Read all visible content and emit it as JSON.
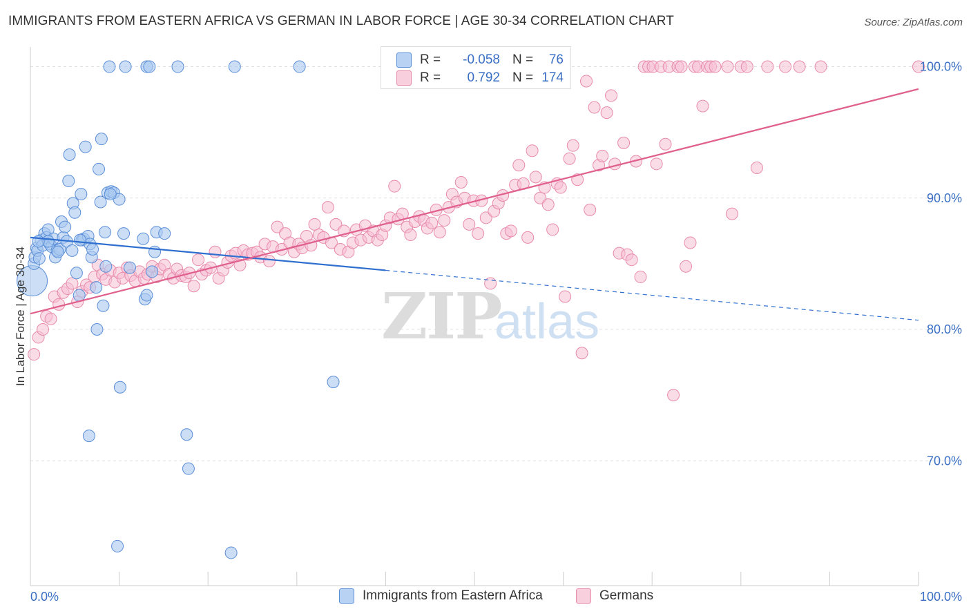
{
  "title": "IMMIGRANTS FROM EASTERN AFRICA VS GERMAN IN LABOR FORCE | AGE 30-34 CORRELATION CHART",
  "source": "Source: ZipAtlas.com",
  "watermark": {
    "zip": "ZIP",
    "atlas": "atlas"
  },
  "colors": {
    "blue_fill": "#a9c8f0",
    "blue_stroke": "#5b8ed8",
    "blue_line": "#2f6fcf",
    "pink_fill": "#f5c0d3",
    "pink_stroke": "#e88aaa",
    "pink_line": "#e0608e",
    "tick_label": "#3a6fc4",
    "grid": "#e0e0e0"
  },
  "stats": [
    {
      "series": "Immigrants from Eastern Africa",
      "r_label": "R =",
      "r": "-0.058",
      "n_label": "N =",
      "n": "76"
    },
    {
      "series": "Germans",
      "r_label": "R =",
      "r": "0.792",
      "n_label": "N =",
      "n": "174"
    }
  ],
  "chart_data": {
    "type": "scatter",
    "title": "IMMIGRANTS FROM EASTERN AFRICA VS GERMAN IN LABOR FORCE | AGE 30-34 CORRELATION CHART",
    "xlabel": "",
    "ylabel": "In Labor Force | Age 30-34",
    "xlim": [
      0,
      100
    ],
    "ylim": [
      60.5,
      101.5
    ],
    "x_tick_labels": [
      "0.0%",
      "100.0%"
    ],
    "y_ticks": [
      70,
      80,
      90,
      100
    ],
    "y_tick_labels": [
      "70.0%",
      "80.0%",
      "90.0%",
      "100.0%"
    ],
    "grid": true,
    "legend": "bottom-center",
    "series": [
      {
        "name": "Immigrants from Eastern Africa",
        "color": "#a9c8f0",
        "trend": {
          "x0": 0,
          "y0": 87.0,
          "x1": 40,
          "y1": 84.5,
          "dashed_to_x": 100,
          "dashed_to_y": 80.7
        },
        "points": [
          [
            0.2,
            83.7
          ],
          [
            0.4,
            85.0
          ],
          [
            0.5,
            85.5
          ],
          [
            0.7,
            86.2
          ],
          [
            0.8,
            86.0
          ],
          [
            1.2,
            86.8
          ],
          [
            1.4,
            86.4
          ],
          [
            1.6,
            87.3
          ],
          [
            1.8,
            87.0
          ],
          [
            2.0,
            87.6
          ],
          [
            2.2,
            86.5
          ],
          [
            2.4,
            86.3
          ],
          [
            2.6,
            86.9
          ],
          [
            2.8,
            85.5
          ],
          [
            3.0,
            86.0
          ],
          [
            3.3,
            86.1
          ],
          [
            3.5,
            88.2
          ],
          [
            3.7,
            87.0
          ],
          [
            3.9,
            87.8
          ],
          [
            4.1,
            86.7
          ],
          [
            4.3,
            91.3
          ],
          [
            4.4,
            93.3
          ],
          [
            4.7,
            86.0
          ],
          [
            4.8,
            89.6
          ],
          [
            5.0,
            88.9
          ],
          [
            5.2,
            84.3
          ],
          [
            5.5,
            82.6
          ],
          [
            5.7,
            90.3
          ],
          [
            5.8,
            86.8
          ],
          [
            6.0,
            86.9
          ],
          [
            6.2,
            93.9
          ],
          [
            6.5,
            87.1
          ],
          [
            6.7,
            86.5
          ],
          [
            6.9,
            85.5
          ],
          [
            7.0,
            86.1
          ],
          [
            7.4,
            83.2
          ],
          [
            7.5,
            80.0
          ],
          [
            7.7,
            92.2
          ],
          [
            7.9,
            89.7
          ],
          [
            8.0,
            94.5
          ],
          [
            8.2,
            81.8
          ],
          [
            8.4,
            87.4
          ],
          [
            8.5,
            84.8
          ],
          [
            8.7,
            90.4
          ],
          [
            8.9,
            100.0
          ],
          [
            9.1,
            90.5
          ],
          [
            9.4,
            90.4
          ],
          [
            9.8,
            63.5
          ],
          [
            10.0,
            89.9
          ],
          [
            10.1,
            75.6
          ],
          [
            10.5,
            87.3
          ],
          [
            10.7,
            100.0
          ],
          [
            11.2,
            84.7
          ],
          [
            12.9,
            82.3
          ],
          [
            13.1,
            82.6
          ],
          [
            13.1,
            100.0
          ],
          [
            13.4,
            100.0
          ],
          [
            13.7,
            84.4
          ],
          [
            14.0,
            85.9
          ],
          [
            14.2,
            87.4
          ],
          [
            15.1,
            87.3
          ],
          [
            16.6,
            100.0
          ],
          [
            17.6,
            72.0
          ],
          [
            17.8,
            69.4
          ],
          [
            22.6,
            63.0
          ],
          [
            23.0,
            100.0
          ],
          [
            30.3,
            100.0
          ],
          [
            34.1,
            76.0
          ],
          [
            1.0,
            85.4
          ],
          [
            2.0,
            86.7
          ],
          [
            3.1,
            85.9
          ],
          [
            5.6,
            86.8
          ],
          [
            6.6,
            71.9
          ],
          [
            9.0,
            90.3
          ],
          [
            12.7,
            86.9
          ],
          [
            0.9,
            86.7
          ]
        ],
        "point_sizes": {
          "0": "large"
        }
      },
      {
        "name": "Germans",
        "color": "#f5c0d3",
        "trend": {
          "x0": 0,
          "y0": 81.2,
          "x1": 100,
          "y1": 98.3
        },
        "points": [
          [
            0.4,
            78.1
          ],
          [
            0.9,
            79.4
          ],
          [
            1.4,
            80.0
          ],
          [
            1.8,
            81.0
          ],
          [
            2.3,
            80.8
          ],
          [
            2.7,
            82.5
          ],
          [
            3.2,
            81.9
          ],
          [
            3.7,
            82.8
          ],
          [
            4.2,
            83.1
          ],
          [
            4.7,
            83.5
          ],
          [
            5.3,
            82.1
          ],
          [
            5.8,
            82.9
          ],
          [
            6.3,
            83.4
          ],
          [
            6.7,
            83.2
          ],
          [
            7.2,
            84.0
          ],
          [
            7.6,
            84.9
          ],
          [
            8.1,
            84.2
          ],
          [
            8.5,
            83.8
          ],
          [
            9.0,
            84.5
          ],
          [
            9.5,
            83.6
          ],
          [
            10.0,
            84.3
          ],
          [
            10.4,
            83.9
          ],
          [
            10.9,
            84.7
          ],
          [
            11.3,
            84.1
          ],
          [
            11.8,
            83.7
          ],
          [
            12.3,
            84.4
          ],
          [
            12.8,
            83.9
          ],
          [
            13.2,
            84.2
          ],
          [
            13.7,
            84.8
          ],
          [
            14.2,
            84.0
          ],
          [
            14.6,
            84.6
          ],
          [
            15.1,
            84.9
          ],
          [
            15.6,
            84.2
          ],
          [
            16.1,
            83.9
          ],
          [
            16.5,
            84.6
          ],
          [
            17.0,
            84.1
          ],
          [
            17.5,
            84.0
          ],
          [
            17.9,
            84.3
          ],
          [
            18.4,
            83.3
          ],
          [
            18.9,
            85.3
          ],
          [
            19.3,
            84.2
          ],
          [
            19.8,
            84.5
          ],
          [
            20.3,
            84.7
          ],
          [
            20.8,
            85.9
          ],
          [
            21.2,
            83.9
          ],
          [
            21.7,
            84.5
          ],
          [
            22.2,
            85.1
          ],
          [
            22.6,
            85.6
          ],
          [
            23.1,
            85.8
          ],
          [
            23.6,
            84.9
          ],
          [
            24.0,
            86.0
          ],
          [
            24.5,
            85.7
          ],
          [
            25.0,
            85.8
          ],
          [
            25.5,
            85.9
          ],
          [
            25.9,
            85.5
          ],
          [
            26.4,
            86.5
          ],
          [
            26.9,
            85.2
          ],
          [
            27.3,
            86.3
          ],
          [
            27.8,
            87.8
          ],
          [
            28.3,
            86.1
          ],
          [
            28.7,
            87.3
          ],
          [
            29.2,
            86.6
          ],
          [
            29.7,
            85.9
          ],
          [
            30.2,
            86.5
          ],
          [
            30.6,
            86.2
          ],
          [
            31.1,
            87.1
          ],
          [
            31.6,
            86.4
          ],
          [
            32.0,
            88.0
          ],
          [
            32.5,
            87.2
          ],
          [
            33.0,
            87.0
          ],
          [
            33.5,
            89.3
          ],
          [
            33.9,
            86.6
          ],
          [
            34.4,
            88.0
          ],
          [
            34.9,
            86.1
          ],
          [
            35.3,
            87.5
          ],
          [
            35.8,
            85.9
          ],
          [
            36.3,
            86.6
          ],
          [
            36.7,
            87.6
          ],
          [
            37.2,
            86.8
          ],
          [
            37.7,
            87.9
          ],
          [
            38.1,
            87.0
          ],
          [
            38.6,
            87.5
          ],
          [
            39.1,
            86.8
          ],
          [
            39.6,
            87.2
          ],
          [
            40.0,
            87.9
          ],
          [
            40.5,
            88.5
          ],
          [
            41.0,
            90.9
          ],
          [
            41.4,
            88.4
          ],
          [
            41.9,
            88.8
          ],
          [
            42.4,
            87.8
          ],
          [
            42.8,
            87.2
          ],
          [
            43.3,
            88.2
          ],
          [
            43.8,
            88.6
          ],
          [
            44.3,
            88.3
          ],
          [
            44.7,
            87.7
          ],
          [
            45.2,
            88.1
          ],
          [
            45.7,
            89.1
          ],
          [
            46.1,
            87.4
          ],
          [
            46.6,
            88.3
          ],
          [
            47.1,
            89.3
          ],
          [
            47.5,
            90.3
          ],
          [
            48.0,
            89.7
          ],
          [
            48.5,
            91.2
          ],
          [
            48.9,
            90.0
          ],
          [
            49.4,
            88.0
          ],
          [
            49.9,
            89.8
          ],
          [
            50.4,
            87.3
          ],
          [
            50.8,
            89.8
          ],
          [
            51.3,
            88.5
          ],
          [
            51.8,
            83.5
          ],
          [
            52.2,
            89.0
          ],
          [
            52.7,
            89.6
          ],
          [
            53.2,
            90.2
          ],
          [
            53.6,
            87.3
          ],
          [
            54.1,
            87.5
          ],
          [
            54.6,
            91.0
          ],
          [
            55.0,
            92.5
          ],
          [
            55.5,
            91.1
          ],
          [
            56.0,
            87.0
          ],
          [
            56.5,
            93.6
          ],
          [
            56.9,
            91.6
          ],
          [
            57.4,
            90.0
          ],
          [
            57.9,
            90.8
          ],
          [
            58.3,
            89.5
          ],
          [
            58.8,
            87.6
          ],
          [
            59.3,
            91.1
          ],
          [
            59.7,
            90.8
          ],
          [
            60.2,
            82.5
          ],
          [
            60.7,
            93.0
          ],
          [
            61.1,
            94.0
          ],
          [
            61.6,
            91.4
          ],
          [
            62.1,
            78.2
          ],
          [
            62.6,
            98.9
          ],
          [
            63.0,
            89.1
          ],
          [
            63.5,
            96.9
          ],
          [
            64.0,
            92.5
          ],
          [
            64.4,
            93.2
          ],
          [
            64.9,
            96.5
          ],
          [
            65.4,
            97.8
          ],
          [
            65.8,
            92.6
          ],
          [
            66.3,
            85.8
          ],
          [
            66.8,
            94.2
          ],
          [
            67.2,
            85.7
          ],
          [
            67.7,
            85.3
          ],
          [
            68.2,
            92.8
          ],
          [
            68.7,
            84.0
          ],
          [
            69.1,
            100.0
          ],
          [
            69.6,
            100.0
          ],
          [
            70.1,
            100.0
          ],
          [
            70.5,
            92.6
          ],
          [
            71.0,
            100.0
          ],
          [
            71.5,
            94.1
          ],
          [
            71.9,
            100.0
          ],
          [
            72.4,
            75.0
          ],
          [
            72.9,
            100.0
          ],
          [
            73.3,
            100.0
          ],
          [
            73.8,
            84.8
          ],
          [
            74.3,
            86.6
          ],
          [
            74.8,
            100.0
          ],
          [
            75.2,
            100.0
          ],
          [
            75.7,
            97.0
          ],
          [
            76.2,
            100.0
          ],
          [
            76.6,
            100.0
          ],
          [
            77.1,
            100.0
          ],
          [
            78.5,
            100.0
          ],
          [
            79.0,
            88.8
          ],
          [
            80.0,
            100.0
          ],
          [
            80.7,
            100.0
          ],
          [
            81.8,
            92.3
          ],
          [
            83.0,
            100.0
          ],
          [
            85.0,
            100.0
          ],
          [
            86.6,
            100.0
          ],
          [
            89.0,
            100.0
          ],
          [
            100.0,
            100.0
          ]
        ]
      }
    ]
  }
}
